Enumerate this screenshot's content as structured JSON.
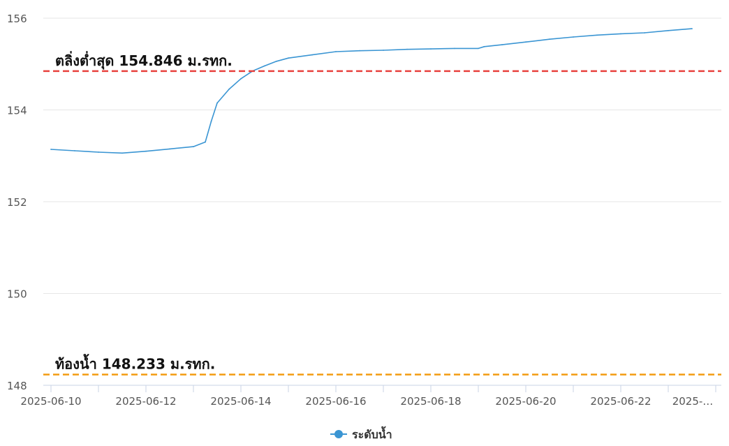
{
  "chart_data": {
    "type": "line",
    "title": "",
    "xlabel": "",
    "ylabel": "",
    "ylim": [
      148,
      156
    ],
    "y_ticks": [
      "148",
      "150",
      "152",
      "154",
      "156"
    ],
    "x_ticks": [
      "2025-06-10",
      "2025-06-12",
      "2025-06-14",
      "2025-06-16",
      "2025-06-18",
      "2025-06-20",
      "2025-06-22",
      "2025-…"
    ],
    "grid": true,
    "legend_position": "bottom-center",
    "series": [
      {
        "name": "ระดับน้ำ",
        "color": "#3a95d3",
        "points": [
          [
            "2025-06-10 00:00",
            153.14
          ],
          [
            "2025-06-10 12:00",
            153.11
          ],
          [
            "2025-06-11 00:00",
            153.08
          ],
          [
            "2025-06-11 12:00",
            153.06
          ],
          [
            "2025-06-12 00:00",
            153.1
          ],
          [
            "2025-06-12 12:00",
            153.15
          ],
          [
            "2025-06-13 00:00",
            153.2
          ],
          [
            "2025-06-13 06:00",
            153.3
          ],
          [
            "2025-06-13 09:00",
            153.75
          ],
          [
            "2025-06-13 12:00",
            154.15
          ],
          [
            "2025-06-13 18:00",
            154.45
          ],
          [
            "2025-06-14 00:00",
            154.68
          ],
          [
            "2025-06-14 06:00",
            154.85
          ],
          [
            "2025-06-14 12:00",
            154.96
          ],
          [
            "2025-06-14 18:00",
            155.06
          ],
          [
            "2025-06-15 00:00",
            155.13
          ],
          [
            "2025-06-15 12:00",
            155.2
          ],
          [
            "2025-06-16 00:00",
            155.27
          ],
          [
            "2025-06-16 12:00",
            155.29
          ],
          [
            "2025-06-17 00:00",
            155.3
          ],
          [
            "2025-06-17 12:00",
            155.32
          ],
          [
            "2025-06-18 00:00",
            155.33
          ],
          [
            "2025-06-18 12:00",
            155.34
          ],
          [
            "2025-06-19 00:00",
            155.34
          ],
          [
            "2025-06-19 03:00",
            155.38
          ],
          [
            "2025-06-19 12:00",
            155.42
          ],
          [
            "2025-06-20 00:00",
            155.48
          ],
          [
            "2025-06-20 12:00",
            155.54
          ],
          [
            "2025-06-21 00:00",
            155.59
          ],
          [
            "2025-06-21 12:00",
            155.63
          ],
          [
            "2025-06-22 00:00",
            155.66
          ],
          [
            "2025-06-22 12:00",
            155.68
          ],
          [
            "2025-06-23 00:00",
            155.73
          ],
          [
            "2025-06-23 12:00",
            155.77
          ]
        ]
      }
    ],
    "reference_lines": [
      {
        "label": "ตลิ่งต่ำสุด 154.846 ม.รทก.",
        "value": 154.846,
        "color": "#e8423e",
        "style": "dashed"
      },
      {
        "label": "ท้องน้ำ 148.233 ม.รทก.",
        "value": 148.233,
        "color": "#f39c12",
        "style": "dashed"
      }
    ]
  }
}
